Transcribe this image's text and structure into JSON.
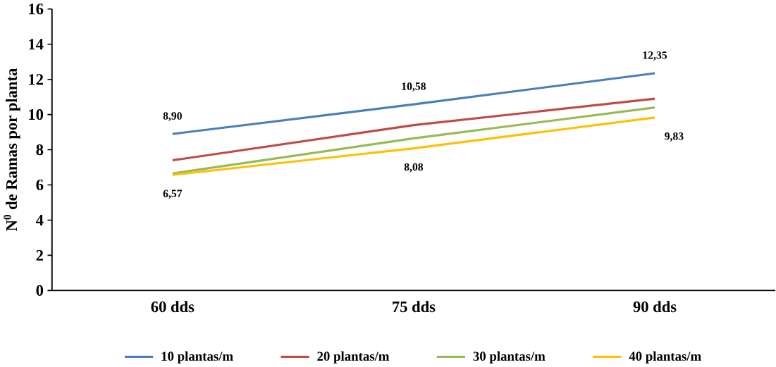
{
  "chart_data": {
    "type": "line",
    "ylabel": "N$^{0}$ de Ramas por planta",
    "categories": [
      "60 dds",
      "75 dds",
      "90 dds"
    ],
    "series": [
      {
        "name": "10 plantas/m",
        "color": "#4a7ebb",
        "values": [
          8.9,
          10.58,
          12.35
        ],
        "value_labels": [
          "8,90",
          "10,58",
          "12,35"
        ]
      },
      {
        "name": "20 plantas/m",
        "color": "#be4b48",
        "values": [
          7.4,
          9.4,
          10.9
        ]
      },
      {
        "name": "30 plantas/m",
        "color": "#98b954",
        "values": [
          6.65,
          8.65,
          10.4
        ]
      },
      {
        "name": "40 plantas/m",
        "color": "#ffc000",
        "values": [
          6.57,
          8.08,
          9.83
        ],
        "value_labels": [
          "6,57",
          "8,08",
          "9,83"
        ]
      }
    ],
    "ylim": [
      0,
      16
    ],
    "yticks": [
      0,
      2,
      4,
      6,
      8,
      10,
      12,
      14,
      16
    ],
    "grid": false,
    "legend": "bottom",
    "marker": "none",
    "line_style": "solid"
  }
}
